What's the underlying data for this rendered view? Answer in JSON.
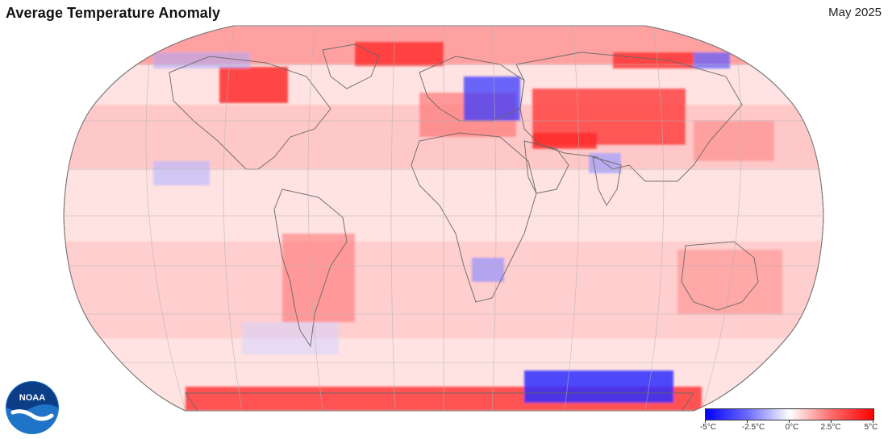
{
  "title": "Average Temperature Anomaly",
  "date": "May 2025",
  "logo": {
    "text": "NOAA",
    "icon": "noaa-logo"
  },
  "legend": {
    "labels": [
      "-5°C",
      "-2.5°C",
      "0°C",
      "2.5°C",
      "5°C"
    ],
    "colors": [
      "#0000ff",
      "#6b6bff",
      "#ffffff",
      "#ff6b6b",
      "#ff0000"
    ]
  },
  "map": {
    "projection": "Robinson",
    "colors": {
      "ocean_base": "#ffe6e6",
      "warm": "#ff5a5a",
      "strong_warm": "#ff2a2a",
      "cool": "#b9b9ff",
      "strong_cool": "#2d2dff"
    }
  }
}
